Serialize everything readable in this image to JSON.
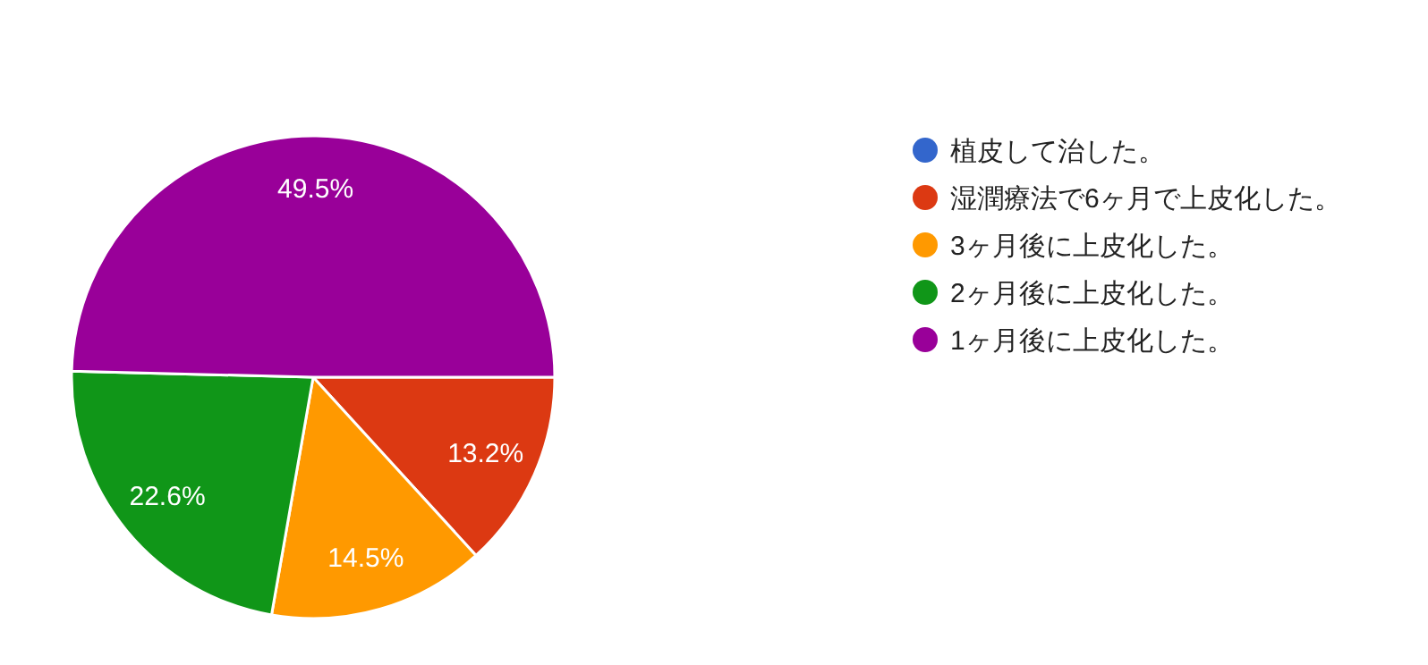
{
  "chart_data": {
    "type": "pie",
    "categories": [
      "植皮して治した。",
      "湿潤療法で6ヶ月で上皮化した。",
      "3ヶ月後に上皮化した。",
      "2ヶ月後に上皮化した。",
      "1ヶ月後に上皮化した。"
    ],
    "values": [
      0,
      13.2,
      14.5,
      22.6,
      49.5
    ],
    "colors": [
      "#3366cc",
      "#dc3912",
      "#ff9900",
      "#109618",
      "#990099"
    ],
    "value_labels": [
      null,
      "13.2%",
      "14.5%",
      "22.6%",
      "49.5%"
    ],
    "legend": "right"
  }
}
